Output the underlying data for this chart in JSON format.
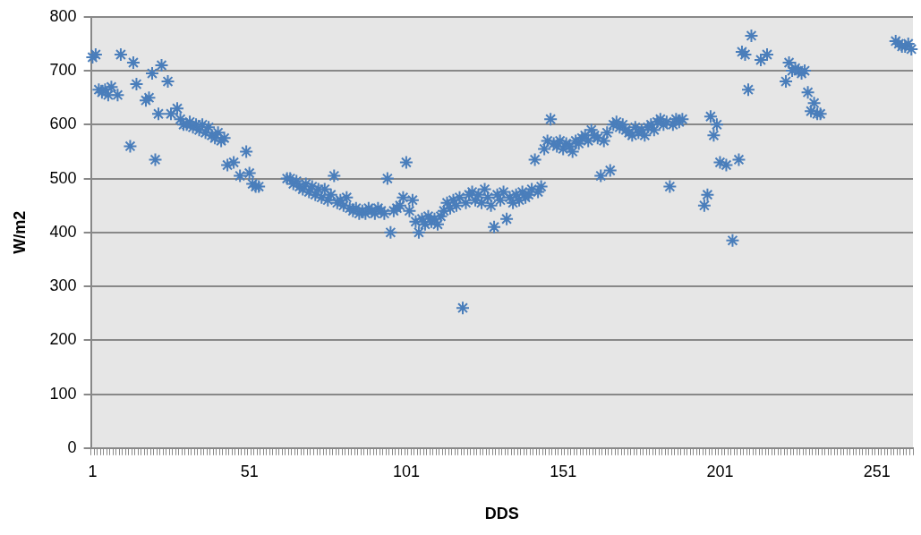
{
  "chart_data": {
    "type": "scatter",
    "xlabel": "DDS",
    "ylabel": "W/m2",
    "color": "#4a7ebb",
    "marker": "cross",
    "grid": "y",
    "ylim": [
      0,
      800
    ],
    "yticks": [
      0,
      100,
      200,
      300,
      400,
      500,
      600,
      700,
      800
    ],
    "categories": [
      "1",
      null,
      null,
      null,
      null,
      null,
      null,
      null,
      null,
      null,
      null,
      null,
      null,
      null,
      null,
      null,
      null,
      null,
      null,
      null,
      null,
      null,
      null,
      null,
      null,
      null,
      null,
      null,
      null,
      null,
      null,
      null,
      null,
      null,
      null,
      null,
      null,
      null,
      null,
      null,
      null,
      null,
      null,
      null,
      null,
      null,
      null,
      null,
      null,
      null,
      "51",
      null,
      null,
      null,
      null,
      null,
      null,
      null,
      null,
      null,
      null,
      null,
      null,
      null,
      null,
      null,
      null,
      null,
      null,
      null,
      null,
      null,
      null,
      null,
      null,
      null,
      null,
      null,
      null,
      null,
      null,
      null,
      null,
      null,
      null,
      null,
      null,
      null,
      null,
      null,
      null,
      null,
      null,
      null,
      null,
      null,
      null,
      null,
      null,
      null,
      "101",
      null,
      null,
      null,
      null,
      null,
      null,
      null,
      null,
      null,
      null,
      null,
      null,
      null,
      null,
      null,
      null,
      null,
      null,
      null,
      null,
      null,
      null,
      null,
      null,
      null,
      null,
      null,
      null,
      null,
      null,
      null,
      null,
      null,
      null,
      null,
      null,
      null,
      null,
      null,
      null,
      null,
      null,
      null,
      null,
      null,
      null,
      null,
      null,
      null,
      "151",
      null,
      null,
      null,
      null,
      null,
      null,
      null,
      null,
      null,
      null,
      null,
      null,
      null,
      null,
      null,
      null,
      null,
      null,
      null,
      null,
      null,
      null,
      null,
      null,
      null,
      null,
      null,
      null,
      null,
      null,
      null,
      null,
      null,
      null,
      null,
      null,
      null,
      null,
      null,
      null,
      null,
      null,
      null,
      null,
      null,
      null,
      null,
      null,
      null,
      "201",
      null,
      null,
      null,
      null,
      null,
      null,
      null,
      null,
      null,
      null,
      null,
      null,
      null,
      null,
      null,
      null,
      null,
      null,
      null,
      null,
      null,
      null,
      null,
      null,
      null,
      null,
      null,
      null,
      null,
      null,
      null,
      null,
      null,
      null,
      null,
      null,
      null,
      null,
      null,
      null,
      null,
      null,
      null,
      null,
      null,
      null,
      null,
      null,
      null,
      "251",
      null,
      null,
      null,
      null,
      null,
      null,
      null,
      null,
      null,
      null,
      null
    ],
    "values": [
      725,
      730,
      665,
      660,
      665,
      655,
      670,
      null,
      655,
      730,
      null,
      null,
      560,
      715,
      675,
      null,
      null,
      645,
      650,
      695,
      535,
      620,
      710,
      null,
      680,
      620,
      null,
      630,
      610,
      600,
      600,
      605,
      595,
      600,
      590,
      600,
      585,
      595,
      580,
      575,
      585,
      570,
      575,
      525,
      null,
      530,
      null,
      505,
      null,
      550,
      510,
      490,
      485,
      485,
      null,
      null,
      null,
      null,
      null,
      null,
      null,
      null,
      500,
      500,
      490,
      495,
      485,
      480,
      490,
      475,
      485,
      470,
      480,
      465,
      480,
      460,
      470,
      505,
      455,
      460,
      450,
      465,
      445,
      440,
      445,
      435,
      440,
      435,
      445,
      440,
      435,
      445,
      440,
      435,
      500,
      400,
      440,
      445,
      450,
      465,
      530,
      440,
      460,
      420,
      400,
      425,
      415,
      430,
      420,
      425,
      415,
      430,
      440,
      455,
      445,
      460,
      450,
      465,
      260,
      455,
      470,
      475,
      460,
      470,
      455,
      480,
      465,
      450,
      410,
      470,
      460,
      475,
      425,
      465,
      455,
      470,
      460,
      475,
      465,
      470,
      480,
      535,
      475,
      485,
      555,
      570,
      610,
      565,
      560,
      570,
      555,
      565,
      560,
      550,
      570,
      565,
      575,
      580,
      570,
      590,
      580,
      575,
      505,
      570,
      585,
      515,
      600,
      605,
      595,
      600,
      590,
      585,
      580,
      595,
      585,
      590,
      580,
      595,
      600,
      590,
      605,
      610,
      600,
      605,
      485,
      600,
      610,
      605,
      610,
      null,
      null,
      null,
      null,
      null,
      null,
      450,
      470,
      615,
      580,
      600,
      530,
      null,
      525,
      null,
      385,
      null,
      535,
      735,
      730,
      665,
      765,
      null,
      null,
      720,
      null,
      730,
      null,
      null,
      null,
      null,
      null,
      680,
      715,
      700,
      705,
      700,
      695,
      700,
      660,
      625,
      640,
      620,
      620,
      null,
      null,
      null,
      null,
      null,
      null,
      null,
      null,
      null,
      null,
      null,
      null,
      null,
      null,
      null,
      null,
      null,
      null,
      null,
      null,
      null,
      null,
      null,
      755,
      750,
      745,
      745,
      750,
      740
    ]
  }
}
